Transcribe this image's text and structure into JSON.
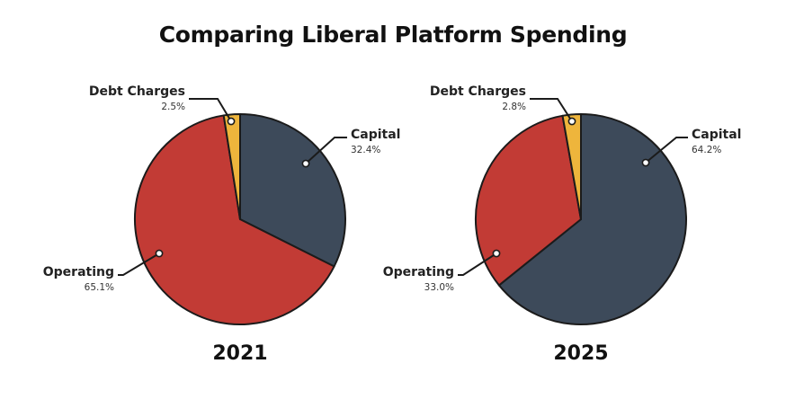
{
  "chart_data": {
    "title": "Comparing Liberal Platform Spending",
    "type": "pie",
    "colors": {
      "Capital": "#3d4a5a",
      "Operating": "#c23b35",
      "Debt Charges": "#eeb53c"
    },
    "charts": [
      {
        "year": "2021",
        "slices": [
          {
            "label": "Capital",
            "value": 32.4,
            "display": "32.4%"
          },
          {
            "label": "Operating",
            "value": 65.1,
            "display": "65.1%"
          },
          {
            "label": "Debt Charges",
            "value": 2.5,
            "display": "2.5%"
          }
        ]
      },
      {
        "year": "2025",
        "slices": [
          {
            "label": "Capital",
            "value": 64.2,
            "display": "64.2%"
          },
          {
            "label": "Operating",
            "value": 33.0,
            "display": "33.0%"
          },
          {
            "label": "Debt Charges",
            "value": 2.8,
            "display": "2.8%"
          }
        ]
      }
    ]
  }
}
